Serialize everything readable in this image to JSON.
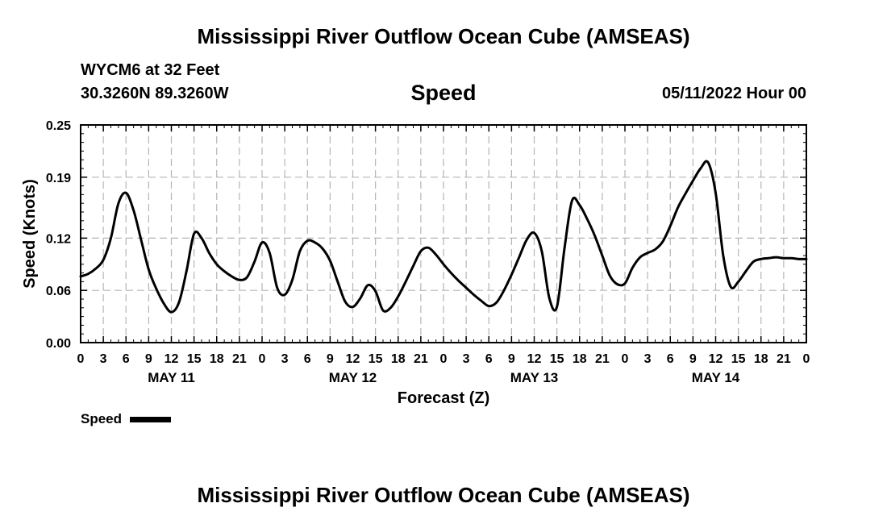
{
  "header": {
    "title": "Mississippi River Outflow Ocean Cube (AMSEAS)",
    "station": "WYCM6 at 32 Feet",
    "coordinates": "30.3260N  89.3260W",
    "run_time": "05/11/2022 Hour 00"
  },
  "footer": {
    "title": "Mississippi River Outflow Ocean Cube (AMSEAS)"
  },
  "chart_data": {
    "type": "line",
    "title": "Speed",
    "xlabel": "Forecast (Z)",
    "ylabel": "Speed (Knots)",
    "xlim": [
      0,
      96
    ],
    "ylim": [
      0,
      0.25
    ],
    "grid": true,
    "yticks": [
      0.0,
      0.06,
      0.12,
      0.19,
      0.25
    ],
    "ytick_labels": [
      "0.00",
      "0.06",
      "0.12",
      "0.19",
      "0.25"
    ],
    "xtick_labels": [
      "0",
      "3",
      "6",
      "9",
      "12",
      "15",
      "18",
      "21",
      "0",
      "3",
      "6",
      "9",
      "12",
      "15",
      "18",
      "21",
      "0",
      "3",
      "6",
      "9",
      "12",
      "15",
      "18",
      "21",
      "0",
      "3",
      "6",
      "9",
      "12",
      "15",
      "18",
      "21",
      "0"
    ],
    "day_labels": [
      {
        "label": "MAY 11",
        "hour": 12
      },
      {
        "label": "MAY 12",
        "hour": 36
      },
      {
        "label": "MAY 13",
        "hour": 60
      },
      {
        "label": "MAY 14",
        "hour": 84
      }
    ],
    "legend": {
      "label": "Speed",
      "position": "bottom-left"
    },
    "series": [
      {
        "name": "Speed",
        "color": "#000000",
        "x": [
          0,
          1,
          2,
          3,
          4,
          5,
          6,
          7,
          8,
          9,
          10,
          11,
          12,
          13,
          14,
          15,
          16,
          17,
          18,
          19,
          20,
          21,
          22,
          23,
          24,
          25,
          26,
          27,
          28,
          29,
          30,
          31,
          32,
          33,
          34,
          35,
          36,
          37,
          38,
          39,
          40,
          41,
          42,
          43,
          44,
          45,
          46,
          47,
          48,
          49,
          50,
          51,
          52,
          53,
          54,
          55,
          56,
          57,
          58,
          59,
          60,
          61,
          62,
          63,
          64,
          65,
          66,
          67,
          68,
          69,
          70,
          71,
          72,
          73,
          74,
          75,
          76,
          77,
          78,
          79,
          80,
          81,
          82,
          83,
          84,
          85,
          86,
          87,
          88,
          89,
          90,
          91,
          92,
          93,
          94,
          95,
          96
        ],
        "values": [
          0.076,
          0.079,
          0.085,
          0.095,
          0.12,
          0.16,
          0.172,
          0.152,
          0.118,
          0.084,
          0.062,
          0.045,
          0.035,
          0.046,
          0.082,
          0.125,
          0.12,
          0.103,
          0.09,
          0.082,
          0.076,
          0.072,
          0.075,
          0.093,
          0.115,
          0.103,
          0.063,
          0.055,
          0.072,
          0.105,
          0.117,
          0.115,
          0.108,
          0.094,
          0.07,
          0.047,
          0.041,
          0.051,
          0.066,
          0.059,
          0.037,
          0.04,
          0.053,
          0.07,
          0.088,
          0.105,
          0.109,
          0.101,
          0.09,
          0.08,
          0.071,
          0.063,
          0.055,
          0.048,
          0.042,
          0.046,
          0.06,
          0.078,
          0.098,
          0.118,
          0.126,
          0.105,
          0.051,
          0.041,
          0.108,
          0.163,
          0.158,
          0.142,
          0.123,
          0.1,
          0.077,
          0.067,
          0.068,
          0.086,
          0.098,
          0.103,
          0.107,
          0.116,
          0.134,
          0.155,
          0.171,
          0.186,
          0.2,
          0.207,
          0.172,
          0.1,
          0.064,
          0.07,
          0.082,
          0.093,
          0.096,
          0.097,
          0.098,
          0.097,
          0.097,
          0.096,
          0.096
        ]
      }
    ]
  }
}
